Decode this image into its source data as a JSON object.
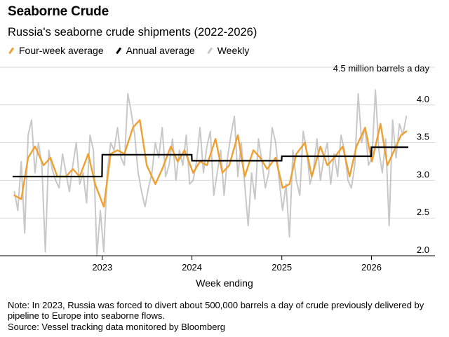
{
  "title": "Seaborne Crude",
  "subtitle": "Russia's seaborne crude shipments (2022-2026)",
  "legend": [
    {
      "label": "Four-week average",
      "color": "#f0a030"
    },
    {
      "label": "Annual average",
      "color": "#000000"
    },
    {
      "label": "Weekly",
      "color": "#c8c8c8"
    }
  ],
  "note": "Note: In 2023, Russia was forced to divert about 500,000 barrels a day of crude previously delivered by pipeline to Europe into seaborne flows.",
  "source": "Source: Vessel tracking data monitored by Bloomberg",
  "chart_data": {
    "type": "line",
    "title": "Russia's seaborne crude shipments (2022-2026)",
    "xlabel": "Week ending",
    "ylabel": "million barrels a day",
    "unit_label": "4.5 million barrels a day",
    "ylim": [
      2.0,
      4.5
    ],
    "xlim": [
      "2022-01-01",
      "2026-05-31"
    ],
    "yticks": [
      "2.0",
      "2.5",
      "3.0",
      "3.5",
      "4.0"
    ],
    "xticks": [
      {
        "date": "2023-01-01",
        "label": "2023"
      },
      {
        "date": "2024-01-01",
        "label": "2024"
      },
      {
        "date": "2025-01-01",
        "label": "2025"
      },
      {
        "date": "2026-01-01",
        "label": "2026"
      }
    ],
    "grid": true,
    "legend_position": "top-left",
    "annual_average": [
      {
        "from": "2022-01-01",
        "to": "2022-12-31",
        "value": 3.05
      },
      {
        "from": "2023-01-01",
        "to": "2023-12-31",
        "value": 3.34
      },
      {
        "from": "2024-01-01",
        "to": "2024-12-31",
        "value": 3.26
      },
      {
        "from": "2025-01-01",
        "to": "2025-12-31",
        "value": 3.32
      },
      {
        "from": "2026-01-01",
        "to": "2026-05-31",
        "value": 3.44
      }
    ],
    "four_week_average": {
      "dates": [
        "2022-01-08",
        "2022-02-05",
        "2022-03-05",
        "2022-04-02",
        "2022-05-07",
        "2022-06-04",
        "2022-07-02",
        "2022-08-06",
        "2022-09-03",
        "2022-10-01",
        "2022-11-05",
        "2022-12-03",
        "2023-01-07",
        "2023-02-04",
        "2023-03-04",
        "2023-04-01",
        "2023-05-06",
        "2023-06-03",
        "2023-07-01",
        "2023-08-05",
        "2023-09-02",
        "2023-10-07",
        "2023-11-04",
        "2023-12-02",
        "2024-01-06",
        "2024-02-03",
        "2024-03-02",
        "2024-04-06",
        "2024-05-04",
        "2024-06-01",
        "2024-07-06",
        "2024-08-03",
        "2024-09-07",
        "2024-10-05",
        "2024-11-02",
        "2024-12-07",
        "2025-01-04",
        "2025-02-01",
        "2025-03-01",
        "2025-04-05",
        "2025-05-03",
        "2025-06-07",
        "2025-07-05",
        "2025-08-02",
        "2025-09-06",
        "2025-10-04",
        "2025-11-01",
        "2025-12-06",
        "2026-01-03",
        "2026-02-07",
        "2026-03-07",
        "2026-04-04",
        "2026-05-02",
        "2026-05-23"
      ],
      "values": [
        2.8,
        2.75,
        3.3,
        3.45,
        3.2,
        3.3,
        3.05,
        3.05,
        3.15,
        3.05,
        3.35,
        2.95,
        2.65,
        3.35,
        3.4,
        3.35,
        3.7,
        3.8,
        3.2,
        2.95,
        3.15,
        3.45,
        3.25,
        3.4,
        3.1,
        3.25,
        3.2,
        3.55,
        3.1,
        3.2,
        3.6,
        3.05,
        3.4,
        3.3,
        3.15,
        3.3,
        2.9,
        2.95,
        3.35,
        3.5,
        3.05,
        3.45,
        3.2,
        3.3,
        3.45,
        3.05,
        3.45,
        3.7,
        3.25,
        3.75,
        3.2,
        3.4,
        3.6,
        3.65
      ]
    },
    "weekly": {
      "dates": [
        "2022-01-08",
        "2022-01-22",
        "2022-02-05",
        "2022-02-19",
        "2022-03-05",
        "2022-03-19",
        "2022-04-02",
        "2022-04-16",
        "2022-04-30",
        "2022-05-14",
        "2022-05-28",
        "2022-06-11",
        "2022-06-25",
        "2022-07-09",
        "2022-07-23",
        "2022-08-06",
        "2022-08-20",
        "2022-09-03",
        "2022-09-17",
        "2022-10-01",
        "2022-10-15",
        "2022-10-29",
        "2022-11-12",
        "2022-11-26",
        "2022-12-10",
        "2022-12-24",
        "2023-01-07",
        "2023-01-21",
        "2023-02-04",
        "2023-02-18",
        "2023-03-04",
        "2023-03-18",
        "2023-04-01",
        "2023-04-15",
        "2023-04-29",
        "2023-05-13",
        "2023-05-27",
        "2023-06-10",
        "2023-06-24",
        "2023-07-08",
        "2023-07-22",
        "2023-08-05",
        "2023-08-19",
        "2023-09-02",
        "2023-09-16",
        "2023-09-30",
        "2023-10-14",
        "2023-10-28",
        "2023-11-11",
        "2023-11-25",
        "2023-12-09",
        "2023-12-23",
        "2024-01-06",
        "2024-01-20",
        "2024-02-03",
        "2024-02-17",
        "2024-03-02",
        "2024-03-16",
        "2024-03-30",
        "2024-04-13",
        "2024-04-27",
        "2024-05-11",
        "2024-05-25",
        "2024-06-08",
        "2024-06-22",
        "2024-07-06",
        "2024-07-20",
        "2024-08-03",
        "2024-08-17",
        "2024-08-31",
        "2024-09-14",
        "2024-09-28",
        "2024-10-12",
        "2024-10-26",
        "2024-11-09",
        "2024-11-23",
        "2024-12-07",
        "2024-12-21",
        "2025-01-04",
        "2025-01-18",
        "2025-02-01",
        "2025-02-15",
        "2025-03-01",
        "2025-03-15",
        "2025-03-29",
        "2025-04-12",
        "2025-04-26",
        "2025-05-10",
        "2025-05-24",
        "2025-06-07",
        "2025-06-21",
        "2025-07-05",
        "2025-07-19",
        "2025-08-02",
        "2025-08-16",
        "2025-08-30",
        "2025-09-13",
        "2025-09-27",
        "2025-10-11",
        "2025-10-25",
        "2025-11-08",
        "2025-11-22",
        "2025-12-06",
        "2025-12-20",
        "2026-01-03",
        "2026-01-17",
        "2026-01-31",
        "2026-02-14",
        "2026-02-28",
        "2026-03-14",
        "2026-03-28",
        "2026-04-11",
        "2026-04-25",
        "2026-05-09",
        "2026-05-23"
      ],
      "values": [
        2.85,
        2.6,
        3.25,
        2.3,
        3.6,
        3.8,
        3.1,
        3.5,
        3.2,
        2.05,
        3.4,
        3.15,
        3.0,
        2.9,
        3.35,
        3.1,
        2.85,
        3.2,
        3.5,
        2.95,
        3.1,
        2.7,
        3.6,
        3.4,
        2.0,
        2.6,
        2.05,
        3.1,
        3.5,
        3.4,
        3.7,
        3.3,
        3.2,
        4.15,
        3.9,
        3.6,
        3.1,
        2.85,
        2.65,
        2.9,
        3.1,
        3.5,
        3.3,
        3.7,
        3.05,
        3.2,
        3.55,
        3.0,
        3.4,
        3.2,
        3.6,
        2.95,
        3.0,
        3.25,
        3.7,
        3.1,
        3.45,
        3.65,
        2.8,
        3.1,
        3.4,
        2.8,
        3.3,
        3.6,
        3.85,
        3.05,
        3.5,
        2.95,
        2.4,
        3.1,
        2.75,
        3.55,
        3.25,
        2.9,
        3.1,
        3.7,
        3.5,
        3.0,
        2.6,
        2.95,
        2.25,
        3.4,
        3.0,
        2.8,
        3.65,
        3.4,
        2.95,
        3.15,
        3.55,
        3.0,
        3.3,
        3.5,
        2.95,
        3.35,
        3.05,
        3.6,
        3.4,
        3.0,
        2.9,
        3.2,
        4.15,
        3.5,
        3.7,
        3.2,
        3.3,
        4.2,
        3.4,
        3.1,
        3.55,
        2.4,
        3.8,
        3.3,
        3.75,
        3.6,
        3.85
      ]
    }
  }
}
